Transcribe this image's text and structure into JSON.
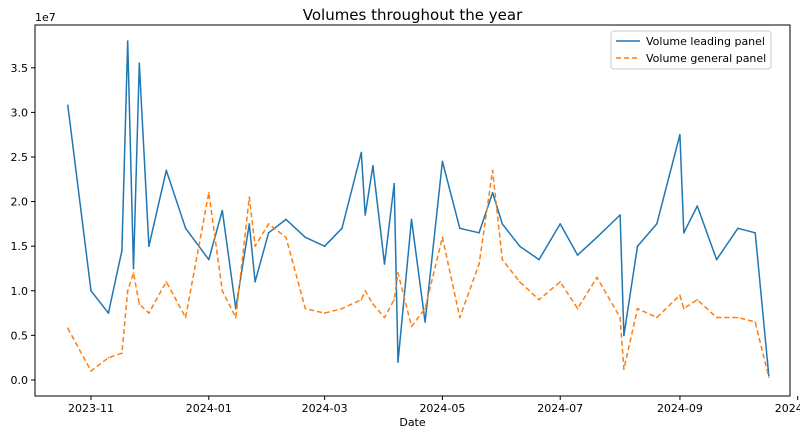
{
  "chart_data": {
    "type": "line",
    "title": "Volumes throughout the year",
    "xlabel": "Date",
    "ylabel": "",
    "y_offset_label": "1e7",
    "y_scale": 10000000,
    "xlim": [
      "2023-10-03",
      "2024-10-28"
    ],
    "ylim": [
      -1800000,
      39800000
    ],
    "x_ticks": [
      "2023-11",
      "2024-01",
      "2024-03",
      "2024-05",
      "2024-07",
      "2024-09",
      "2024-11"
    ],
    "y_ticks": [
      0.0,
      0.5,
      1.0,
      1.5,
      2.0,
      2.5,
      3.0,
      3.5
    ],
    "legend_position": "top-right",
    "grid": false,
    "x": [
      "2023-10-20",
      "2023-11-01",
      "2023-11-10",
      "2023-11-17",
      "2023-11-20",
      "2023-11-23",
      "2023-11-26",
      "2023-12-01",
      "2023-12-10",
      "2023-12-20",
      "2024-01-01",
      "2024-01-08",
      "2024-01-15",
      "2024-01-22",
      "2024-01-25",
      "2024-02-01",
      "2024-02-10",
      "2024-02-20",
      "2024-03-01",
      "2024-03-10",
      "2024-03-20",
      "2024-03-22",
      "2024-03-26",
      "2024-04-01",
      "2024-04-06",
      "2024-04-08",
      "2024-04-15",
      "2024-04-22",
      "2024-05-01",
      "2024-05-10",
      "2024-05-20",
      "2024-05-27",
      "2024-06-01",
      "2024-06-10",
      "2024-06-20",
      "2024-07-01",
      "2024-07-10",
      "2024-07-20",
      "2024-08-01",
      "2024-08-03",
      "2024-08-10",
      "2024-08-20",
      "2024-09-01",
      "2024-09-03",
      "2024-09-10",
      "2024-09-20",
      "2024-10-01",
      "2024-10-10",
      "2024-10-17"
    ],
    "series": [
      {
        "name": "Volume leading panel",
        "color": "#1f77b4",
        "dash": "solid",
        "values": [
          30800000,
          10000000,
          7500000,
          14500000,
          38000000,
          12500000,
          35500000,
          15000000,
          23500000,
          17000000,
          13500000,
          19000000,
          8000000,
          17500000,
          11000000,
          16500000,
          18000000,
          16000000,
          15000000,
          17000000,
          25500000,
          18500000,
          24000000,
          13000000,
          22000000,
          2000000,
          18000000,
          6500000,
          24500000,
          17000000,
          16500000,
          21000000,
          17500000,
          15000000,
          13500000,
          17500000,
          14000000,
          16000000,
          18500000,
          5000000,
          15000000,
          17500000,
          27500000,
          16500000,
          19500000,
          13500000,
          17000000,
          16500000,
          500000
        ]
      },
      {
        "name": "Volume general panel",
        "color": "#ff7f0e",
        "dash": "dashed",
        "values": [
          5800000,
          1000000,
          2500000,
          3000000,
          10000000,
          12000000,
          8500000,
          7500000,
          11000000,
          7000000,
          21000000,
          10000000,
          7000000,
          20500000,
          15000000,
          17500000,
          16000000,
          8000000,
          7500000,
          8000000,
          9000000,
          10000000,
          8500000,
          7000000,
          9000000,
          12000000,
          6000000,
          8000000,
          16000000,
          7000000,
          13000000,
          23500000,
          13500000,
          11000000,
          9000000,
          11000000,
          8000000,
          11500000,
          7000000,
          1200000,
          8000000,
          7000000,
          9500000,
          8000000,
          9000000,
          7000000,
          7000000,
          6500000,
          300000
        ]
      }
    ]
  }
}
